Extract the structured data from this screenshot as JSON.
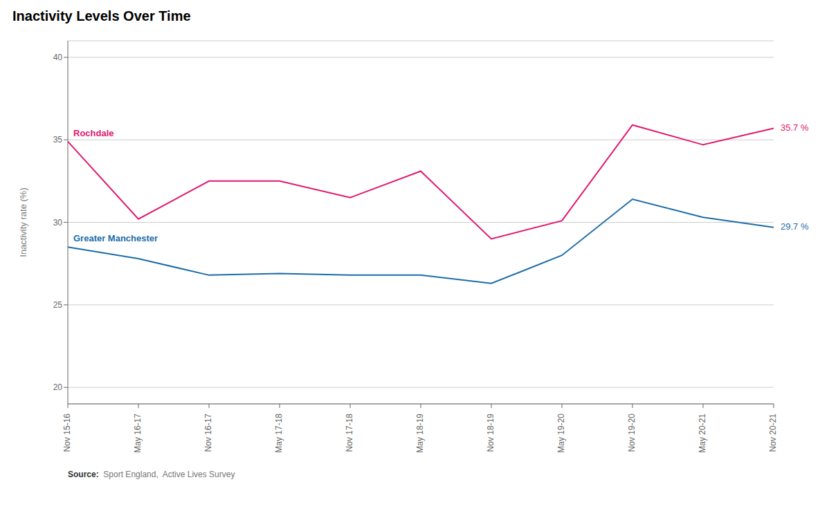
{
  "chart_data": {
    "type": "line",
    "title": "Inactivity Levels Over Time",
    "y_label": "Inactivity rate (%)",
    "categories": [
      "Nov 15-16",
      "May 16-17",
      "Nov 16-17",
      "May 17-18",
      "Nov 17-18",
      "May 18-19",
      "Nov 18-19",
      "May 19-20",
      "Nov 19-20",
      "May 20-21",
      "Nov 20-21"
    ],
    "series": [
      {
        "name": "Rochdale",
        "color": "#e0176e",
        "values": [
          34.9,
          30.2,
          32.5,
          32.5,
          31.5,
          33.1,
          29.0,
          30.1,
          35.9,
          34.7,
          35.7
        ],
        "annotation": "35.7 %"
      },
      {
        "name": "Greater Manchester",
        "color": "#1b6ca8",
        "values": [
          28.5,
          27.8,
          26.8,
          26.9,
          26.8,
          26.8,
          26.3,
          28.0,
          31.4,
          30.3,
          29.7
        ],
        "annotation": "29.7 %"
      }
    ],
    "ylim": [
      19,
      41
    ],
    "yticks": [
      20,
      25,
      30,
      35,
      40
    ],
    "grid": true,
    "source_label": "Source:",
    "source": "  Sport England,  Active Lives Survey"
  }
}
